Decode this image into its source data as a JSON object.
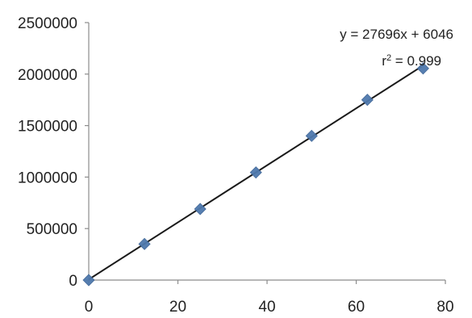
{
  "chart_data": {
    "type": "scatter",
    "x": [
      0,
      12.5,
      25,
      37.5,
      50,
      62.5,
      75
    ],
    "y": [
      0,
      350000,
      690000,
      1045000,
      1400000,
      1750000,
      2055000
    ],
    "xlim": [
      0,
      80
    ],
    "ylim": [
      0,
      2500000
    ],
    "x_ticks": [
      0,
      20,
      40,
      60,
      80
    ],
    "y_ticks": [
      0,
      500000,
      1000000,
      1500000,
      2000000,
      2500000
    ],
    "x_tick_labels": [
      "0",
      "20",
      "40",
      "60",
      "80"
    ],
    "y_tick_labels": [
      "0",
      "500000",
      "1000000",
      "1500000",
      "2000000",
      "2500000"
    ],
    "trendline": {
      "type": "linear",
      "slope": 27696,
      "intercept": 6046,
      "x_range": [
        0,
        75
      ],
      "color": "#1a1a1a"
    },
    "annotations": {
      "equation": "y = 27696x + 6046",
      "r_squared_prefix": "r",
      "r_squared_exp": "2",
      "r_squared_value": " = 0.999"
    },
    "marker": {
      "shape": "diamond",
      "color": "#4f79ad"
    },
    "axis_color": "#8c8c8c",
    "grid": false,
    "legend": "none",
    "title": "",
    "xlabel": "",
    "ylabel": ""
  }
}
